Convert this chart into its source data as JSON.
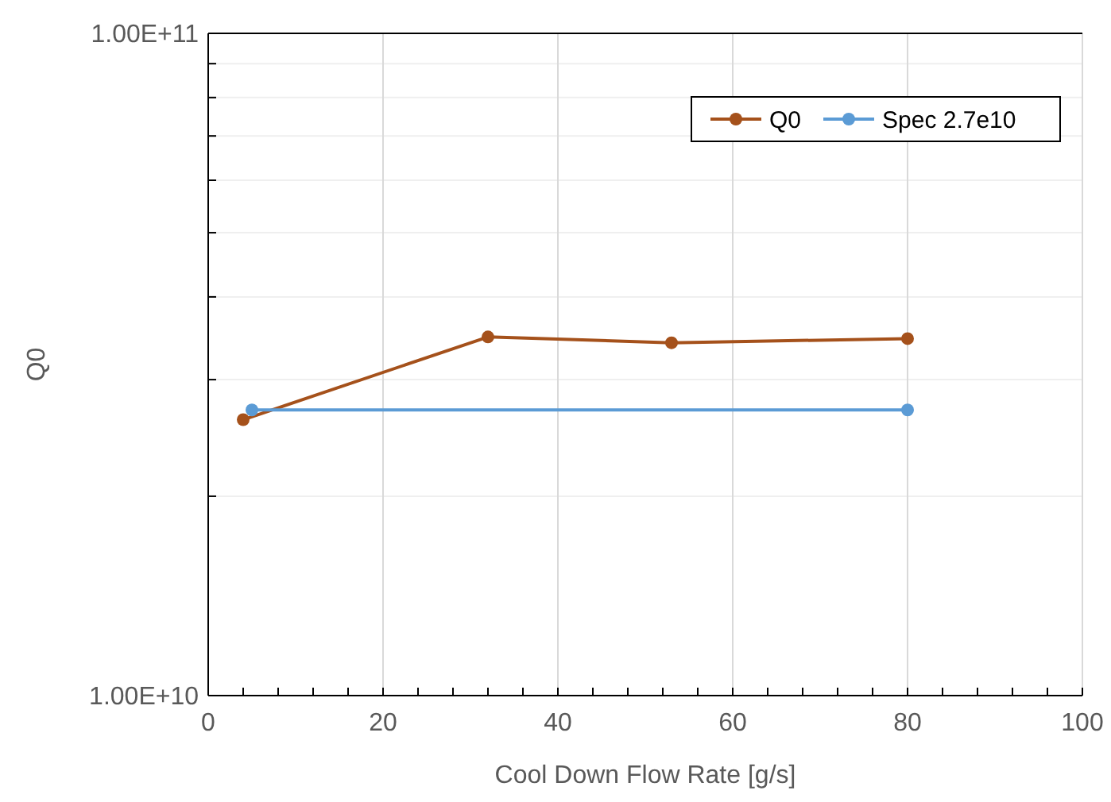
{
  "chart_data": {
    "type": "line",
    "xlabel": "Cool Down Flow Rate [g/s]",
    "ylabel": "Q0",
    "log": "y",
    "grid": true,
    "legend": "top right",
    "marker": "circle",
    "line_style": "solid",
    "xlim": [
      0,
      100
    ],
    "xticks": [
      0,
      {
        "value": 4,
        "label": null
      },
      {
        "value": 8,
        "label": null
      },
      {
        "value": 12,
        "label": null
      },
      {
        "value": 16,
        "label": null
      },
      20,
      {
        "value": 24,
        "label": null
      },
      {
        "value": 28,
        "label": null
      },
      {
        "value": 32,
        "label": null
      },
      {
        "value": 36,
        "label": null
      },
      40,
      {
        "value": 44,
        "label": null
      },
      {
        "value": 48,
        "label": null
      },
      {
        "value": 52,
        "label": null
      },
      {
        "value": 56,
        "label": null
      },
      60,
      {
        "value": 64,
        "label": null
      },
      {
        "value": 68,
        "label": null
      },
      {
        "value": 72,
        "label": null
      },
      {
        "value": 76,
        "label": null
      },
      80,
      {
        "value": 84,
        "label": null
      },
      {
        "value": 88,
        "label": null
      },
      {
        "value": 92,
        "label": null
      },
      {
        "value": 96,
        "label": null
      },
      100
    ],
    "ylim": [
      10000000000.0,
      100000000000.0
    ],
    "yticks": [
      {
        "value": 10000000000.0,
        "label": "1.00E+10"
      },
      {
        "value": 20000000000.0,
        "label": null
      },
      {
        "value": 30000000000.0,
        "label": null
      },
      {
        "value": 40000000000.0,
        "label": null
      },
      {
        "value": 50000000000.0,
        "label": null
      },
      {
        "value": 60000000000.0,
        "label": null
      },
      {
        "value": 70000000000.0,
        "label": null
      },
      {
        "value": 80000000000.0,
        "label": null
      },
      {
        "value": 90000000000.0,
        "label": null
      },
      {
        "value": 100000000000.0,
        "label": "1.00E+11"
      }
    ],
    "series": [
      {
        "name": "Q0",
        "color": "#a5511b",
        "x": [
          4,
          32,
          53,
          80
        ],
        "values": [
          26100000000.0,
          34800000000.0,
          34100000000.0,
          34600000000.0
        ]
      },
      {
        "name": "Spec 2.7e10",
        "color": "#5b9bd5",
        "x": [
          5,
          80
        ],
        "values": [
          27000000000.0,
          27000000000.0
        ]
      }
    ]
  }
}
